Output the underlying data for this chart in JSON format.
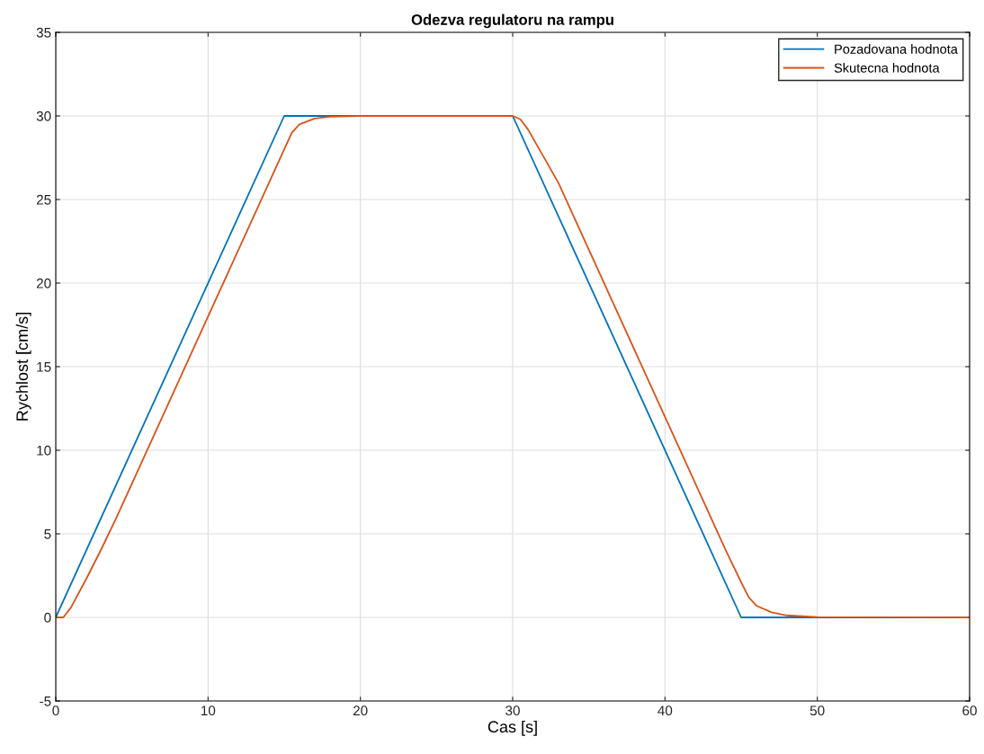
{
  "chart_data": {
    "type": "line",
    "title": "Odezva regulatoru na rampu",
    "xlabel": "Cas [s]",
    "ylabel": "Rychlost [cm/s]",
    "xlim": [
      0,
      60
    ],
    "ylim": [
      -5,
      35
    ],
    "xticks": [
      0,
      10,
      20,
      30,
      40,
      50,
      60
    ],
    "yticks": [
      -5,
      0,
      5,
      10,
      15,
      20,
      25,
      30,
      35
    ],
    "grid": true,
    "legend": "top right",
    "marker": "none",
    "line_style": "solid",
    "series": [
      {
        "name": "Pozadovana hodnota",
        "color": "#0072bd",
        "x": [
          0,
          15,
          30,
          45,
          60
        ],
        "values": [
          0,
          30,
          30,
          0,
          0
        ]
      },
      {
        "name": "Skutecna hodnota",
        "color": "#d95319",
        "x": [
          0,
          0.5,
          1,
          2,
          3,
          4,
          10,
          15,
          15.5,
          16,
          17,
          18,
          20,
          30,
          30.5,
          31,
          32,
          33,
          40,
          44,
          45,
          45.5,
          46,
          47,
          48,
          50,
          60
        ],
        "values": [
          0,
          0,
          0.6,
          2.3,
          4.1,
          6,
          18,
          28,
          29,
          29.5,
          29.85,
          29.95,
          30,
          30,
          29.8,
          29.2,
          27.6,
          26,
          12,
          4,
          2.1,
          1.2,
          0.7,
          0.3,
          0.12,
          0.02,
          0
        ]
      }
    ]
  }
}
